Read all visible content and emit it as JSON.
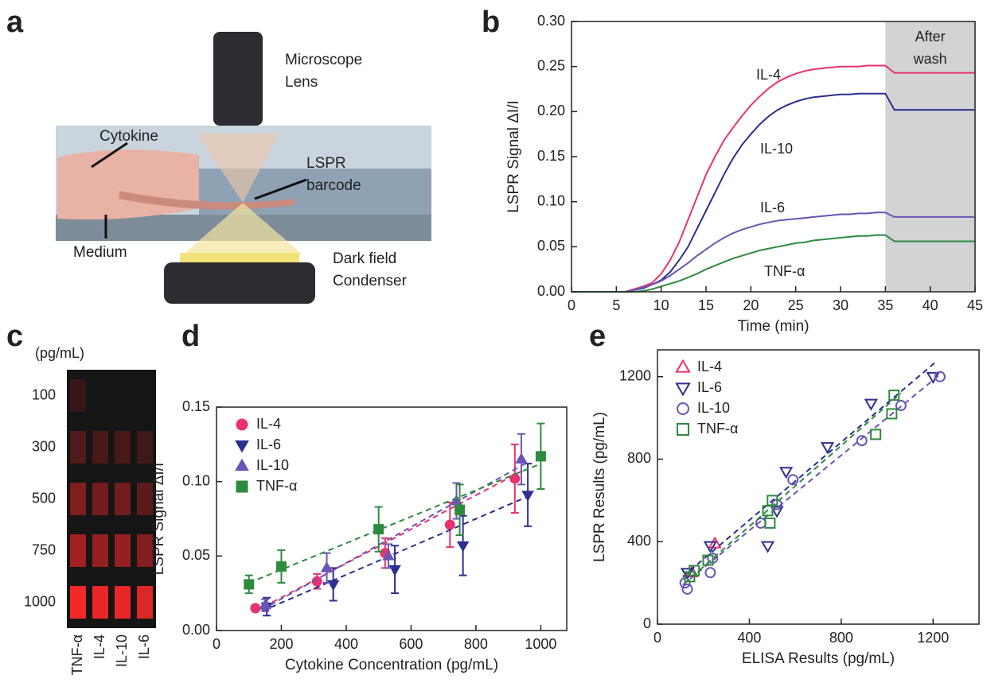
{
  "panel_labels": [
    "a",
    "b",
    "c",
    "d",
    "e"
  ],
  "illustration": {
    "labels": [
      "Microscope",
      "Lens",
      "Cytokine",
      "LSPR",
      "barcode",
      "Medium",
      "Dark field",
      "Condenser"
    ]
  },
  "chart_data": [
    {
      "type": "line",
      "xlabel": "Time (min)",
      "ylabel": "LSPR Signal ΔI/I",
      "x": [
        0,
        1,
        2,
        3,
        4,
        5,
        6,
        7,
        8,
        9,
        10,
        11,
        12,
        13,
        14,
        15,
        16,
        17,
        18,
        19,
        20,
        21,
        22,
        23,
        24,
        25,
        26,
        27,
        28,
        29,
        30,
        31,
        32,
        33,
        34,
        35,
        36,
        37,
        38,
        39,
        40,
        41,
        42,
        43,
        44,
        45
      ],
      "series": [
        {
          "name": "IL-4",
          "color": "#e8336e",
          "values": [
            0,
            0,
            0,
            0,
            0,
            0,
            0,
            0.003,
            0.006,
            0.01,
            0.02,
            0.035,
            0.055,
            0.08,
            0.105,
            0.13,
            0.15,
            0.168,
            0.182,
            0.195,
            0.207,
            0.217,
            0.226,
            0.233,
            0.238,
            0.242,
            0.245,
            0.247,
            0.248,
            0.249,
            0.25,
            0.25,
            0.25,
            0.251,
            0.251,
            0.251,
            0.243,
            0.243,
            0.243,
            0.243,
            0.243,
            0.243,
            0.243,
            0.243,
            0.243,
            0.243
          ]
        },
        {
          "name": "IL-10",
          "color": "#2b2f8f",
          "values": [
            0,
            0,
            0,
            0,
            0,
            0,
            0,
            0.002,
            0.004,
            0.008,
            0.013,
            0.022,
            0.035,
            0.05,
            0.07,
            0.09,
            0.11,
            0.13,
            0.148,
            0.163,
            0.175,
            0.186,
            0.195,
            0.202,
            0.207,
            0.211,
            0.214,
            0.216,
            0.217,
            0.218,
            0.219,
            0.219,
            0.22,
            0.22,
            0.22,
            0.22,
            0.202,
            0.202,
            0.202,
            0.202,
            0.202,
            0.202,
            0.202,
            0.202,
            0.202,
            0.202
          ]
        },
        {
          "name": "IL-6",
          "color": "#6a55b5",
          "values": [
            0,
            0,
            0,
            0,
            0,
            0,
            0,
            0.002,
            0.005,
            0.008,
            0.012,
            0.018,
            0.025,
            0.032,
            0.04,
            0.047,
            0.054,
            0.06,
            0.065,
            0.069,
            0.072,
            0.075,
            0.077,
            0.079,
            0.08,
            0.081,
            0.082,
            0.083,
            0.084,
            0.085,
            0.086,
            0.086,
            0.087,
            0.087,
            0.088,
            0.088,
            0.083,
            0.083,
            0.083,
            0.083,
            0.083,
            0.083,
            0.083,
            0.083,
            0.083,
            0.083
          ]
        },
        {
          "name": "TNF-α",
          "color": "#2e8b3e",
          "values": [
            0,
            0,
            0,
            0,
            0,
            0,
            0,
            0,
            0.001,
            0.003,
            0.006,
            0.009,
            0.012,
            0.016,
            0.02,
            0.025,
            0.029,
            0.033,
            0.037,
            0.04,
            0.043,
            0.046,
            0.048,
            0.05,
            0.052,
            0.054,
            0.055,
            0.057,
            0.058,
            0.059,
            0.06,
            0.061,
            0.062,
            0.062,
            0.063,
            0.063,
            0.056,
            0.056,
            0.056,
            0.056,
            0.056,
            0.056,
            0.056,
            0.056,
            0.056,
            0.056
          ]
        }
      ],
      "shade": {
        "range": [
          35,
          45
        ],
        "label": [
          "After",
          "wash"
        ],
        "color": "#d3d3d6"
      },
      "xlim": [
        0,
        45
      ],
      "xticks": [
        0,
        5,
        10,
        15,
        20,
        25,
        30,
        35,
        40,
        45
      ],
      "ylim": [
        0,
        0.3
      ],
      "yticks": [
        {
          "value": 0,
          "label": "0.00"
        },
        0.05,
        {
          "value": 0.1,
          "label": "0.10"
        },
        0.15,
        {
          "value": 0.2,
          "label": "0.20"
        },
        0.25,
        {
          "value": 0.3,
          "label": "0.30"
        }
      ]
    },
    {
      "type": "heatmap",
      "unit_label": "(pg/mL)",
      "rows": [
        "100",
        "300",
        "500",
        "750",
        "1000"
      ],
      "columns": [
        "TNF-α",
        "IL-4",
        "IL-10",
        "IL-6"
      ],
      "values": [
        [
          15,
          0,
          0,
          0
        ],
        [
          25,
          22,
          22,
          18
        ],
        [
          45,
          40,
          40,
          30
        ],
        [
          60,
          55,
          55,
          48
        ],
        [
          95,
          90,
          90,
          85
        ]
      ],
      "color": "#ff2a2a"
    },
    {
      "type": "scatter",
      "xlabel": "Cytokine Concentration (pg/mL)",
      "ylabel": "LSPR Signal ΔI/I",
      "filled": true,
      "legend": "upper left",
      "series": [
        {
          "name": "IL-4",
          "color": "#e8336e",
          "marker": "circle",
          "x": [
            120,
            310,
            520,
            720,
            920
          ],
          "values": [
            0.015,
            0.033,
            0.052,
            0.071,
            0.102
          ],
          "errors": [
            0.002,
            0.005,
            0.01,
            0.015,
            0.023
          ],
          "fit_x": [
            120,
            950
          ],
          "fit_y": [
            0.013,
            0.108
          ]
        },
        {
          "name": "IL-6",
          "color": "#2b2f8f",
          "marker": "triangle-down",
          "x": [
            155,
            360,
            550,
            760,
            960
          ],
          "values": [
            0.016,
            0.031,
            0.041,
            0.057,
            0.091
          ],
          "errors": [
            0.006,
            0.011,
            0.016,
            0.02,
            0.021
          ],
          "fit_x": [
            140,
            960
          ],
          "fit_y": [
            0.013,
            0.09
          ]
        },
        {
          "name": "IL-10",
          "color": "#6a55b5",
          "marker": "triangle-up",
          "x": [
            150,
            340,
            530,
            740,
            940
          ],
          "values": [
            0.017,
            0.042,
            0.05,
            0.087,
            0.115
          ],
          "errors": [
            0.004,
            0.01,
            0.008,
            0.012,
            0.017
          ],
          "fit_x": [
            140,
            960
          ],
          "fit_y": [
            0.014,
            0.113
          ]
        },
        {
          "name": "TNF-α",
          "color": "#2e8b3e",
          "marker": "square",
          "x": [
            100,
            200,
            500,
            750,
            1000
          ],
          "values": [
            0.031,
            0.043,
            0.068,
            0.081,
            0.117
          ],
          "errors": [
            0.006,
            0.011,
            0.015,
            0.017,
            0.022
          ],
          "fit_x": [
            100,
            1000
          ],
          "fit_y": [
            0.032,
            0.112
          ]
        }
      ],
      "xlim": [
        0,
        1080
      ],
      "xticks": [
        0,
        200,
        400,
        600,
        800,
        1000
      ],
      "ylim": [
        0,
        0.15
      ],
      "yticks": [
        {
          "value": 0,
          "label": "0.00"
        },
        0.05,
        {
          "value": 0.1,
          "label": "0.10"
        },
        0.15
      ]
    },
    {
      "type": "scatter",
      "xlabel": "ELISA Results (pg/mL)",
      "ylabel": "LSPR Results (pg/mL)",
      "filled": false,
      "legend": "upper left",
      "series": [
        {
          "name": "IL-4",
          "color": "#e8336e",
          "marker": "triangle-up",
          "x": [
            150,
            250
          ],
          "values": [
            250,
            390
          ]
        },
        {
          "name": "IL-6",
          "color": "#2b2f8f",
          "marker": "triangle-down",
          "x": [
            130,
            230,
            480,
            520,
            560,
            740,
            930,
            1200
          ],
          "values": [
            250,
            380,
            380,
            550,
            740,
            860,
            1070,
            1200
          ],
          "fit_x": [
            110,
            1210
          ],
          "fit_y": [
            230,
            1270
          ]
        },
        {
          "name": "IL-10",
          "color": "#6a55b5",
          "marker": "circle",
          "x": [
            120,
            130,
            230,
            240,
            450,
            520,
            590,
            890,
            1060,
            1230
          ],
          "values": [
            200,
            170,
            250,
            320,
            490,
            580,
            700,
            890,
            1060,
            1200
          ],
          "fit_x": [
            110,
            1230
          ],
          "fit_y": [
            190,
            1210
          ]
        },
        {
          "name": "TNF-α",
          "color": "#2e8b3e",
          "marker": "square",
          "x": [
            140,
            160,
            220,
            490,
            480,
            500,
            950,
            1020,
            1030
          ],
          "values": [
            230,
            260,
            310,
            490,
            550,
            600,
            920,
            1020,
            1110
          ],
          "fit_x": [
            120,
            1060
          ],
          "fit_y": [
            200,
            1120
          ]
        }
      ],
      "xlim": [
        0,
        1400
      ],
      "xticks": [
        0,
        400,
        800,
        1200
      ],
      "ylim": [
        0,
        1330
      ],
      "yticks": [
        0,
        400,
        800,
        1200
      ]
    }
  ]
}
